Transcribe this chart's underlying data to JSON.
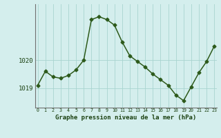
{
  "x": [
    0,
    1,
    2,
    3,
    4,
    5,
    6,
    7,
    8,
    9,
    10,
    11,
    12,
    13,
    14,
    15,
    16,
    17,
    18,
    19,
    20,
    21,
    22,
    23
  ],
  "y": [
    1019.1,
    1019.6,
    1019.4,
    1019.35,
    1019.45,
    1019.65,
    1020.0,
    1021.45,
    1021.55,
    1021.45,
    1021.25,
    1020.65,
    1020.15,
    1019.95,
    1019.75,
    1019.5,
    1019.3,
    1019.1,
    1018.75,
    1018.55,
    1019.05,
    1019.55,
    1019.95,
    1020.5
  ],
  "line_color": "#2d5a1b",
  "marker": "D",
  "marker_size": 2.5,
  "bg_color": "#d4eeed",
  "grid_color": "#a8d4d0",
  "xlabel": "Graphe pression niveau de la mer (hPa)",
  "xlabel_color": "#1a4010",
  "tick_color": "#1a4010",
  "ylabel_ticks": [
    1019,
    1020
  ],
  "ylim": [
    1018.3,
    1022.0
  ],
  "xlim": [
    -0.3,
    23.3
  ],
  "left_spine_color": "#707070"
}
